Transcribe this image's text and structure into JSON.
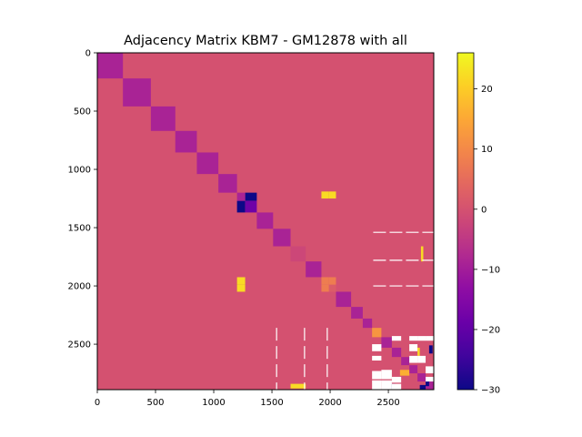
{
  "chart_data": {
    "type": "heatmap",
    "title": "Adjacency Matrix KBM7 - GM12878 with all",
    "matrix_size": 2890,
    "xlim": [
      0,
      2890
    ],
    "ylim": [
      2890,
      0
    ],
    "x_ticks": [
      0,
      500,
      1000,
      1500,
      2000,
      2500
    ],
    "y_ticks": [
      0,
      500,
      1000,
      1500,
      2000,
      2500
    ],
    "background_value": 0,
    "colormap": "plasma",
    "colorbar": {
      "vmin": -30,
      "vmax": 26,
      "ticks": [
        20,
        10,
        0,
        -10,
        -20,
        -30
      ]
    },
    "diagonal_blocks": [
      {
        "start": 0,
        "end": 220,
        "value": -9
      },
      {
        "start": 220,
        "end": 460,
        "value": -9
      },
      {
        "start": 460,
        "end": 670,
        "value": -9
      },
      {
        "start": 670,
        "end": 855,
        "value": -9
      },
      {
        "start": 855,
        "end": 1040,
        "value": -9
      },
      {
        "start": 1040,
        "end": 1200,
        "value": -9
      },
      {
        "start": 1370,
        "end": 1510,
        "value": -9
      },
      {
        "start": 1510,
        "end": 1660,
        "value": -9
      },
      {
        "start": 1660,
        "end": 1790,
        "value": -2
      },
      {
        "start": 1790,
        "end": 1925,
        "value": -9
      },
      {
        "start": 2050,
        "end": 2180,
        "value": -9
      },
      {
        "start": 2180,
        "end": 2280,
        "value": -9
      },
      {
        "start": 2280,
        "end": 2360,
        "value": -9
      },
      {
        "start": 2360,
        "end": 2440,
        "value": 12
      },
      {
        "start": 2440,
        "end": 2530,
        "value": -9
      },
      {
        "start": 2530,
        "end": 2610,
        "value": -9
      },
      {
        "start": 2610,
        "end": 2680,
        "value": -9
      },
      {
        "start": 2680,
        "end": 2750,
        "value": -9
      },
      {
        "start": 2750,
        "end": 2820,
        "value": -9
      },
      {
        "start": 2820,
        "end": 2890,
        "value": -9
      }
    ],
    "cells": [
      {
        "x": [
          1200,
          1270
        ],
        "y": [
          1270,
          1370
        ],
        "value": -30
      },
      {
        "x": [
          1270,
          1370
        ],
        "y": [
          1200,
          1270
        ],
        "value": -30
      },
      {
        "x": [
          1270,
          1370
        ],
        "y": [
          1270,
          1370
        ],
        "value": -18
      },
      {
        "x": [
          1200,
          1270
        ],
        "y": [
          1200,
          1270
        ],
        "value": -9
      },
      {
        "x": [
          1925,
          1990
        ],
        "y": [
          1190,
          1250
        ],
        "value": 22
      },
      {
        "x": [
          1990,
          2050
        ],
        "y": [
          1190,
          1250
        ],
        "value": 22
      },
      {
        "x": [
          1200,
          1270
        ],
        "y": [
          1925,
          1990
        ],
        "value": 22
      },
      {
        "x": [
          1200,
          1270
        ],
        "y": [
          1990,
          2050
        ],
        "value": 22
      },
      {
        "x": [
          1925,
          1990
        ],
        "y": [
          1925,
          1990
        ],
        "value": 8
      },
      {
        "x": [
          1990,
          2050
        ],
        "y": [
          1925,
          1990
        ],
        "value": 8
      },
      {
        "x": [
          1925,
          1990
        ],
        "y": [
          1990,
          2050
        ],
        "value": 8
      },
      {
        "x": [
          1990,
          2050
        ],
        "y": [
          1990,
          2050
        ],
        "value": 2
      },
      {
        "x": [
          1660,
          1790
        ],
        "y": [
          2840,
          2880
        ],
        "value": 22
      },
      {
        "x": [
          2780,
          2800
        ],
        "y": [
          1660,
          1790
        ],
        "value": 22
      },
      {
        "x": [
          2600,
          2680
        ],
        "y": [
          2720,
          2770
        ],
        "value": 16
      },
      {
        "x": [
          2850,
          2880
        ],
        "y": [
          2510,
          2580
        ],
        "value": -30
      },
      {
        "x": [
          2510,
          2560
        ],
        "y": [
          2840,
          2880
        ],
        "value": -30
      },
      {
        "x": [
          2770,
          2820
        ],
        "y": [
          2850,
          2890
        ],
        "value": -30
      },
      {
        "x": [
          2820,
          2850
        ],
        "y": [
          2820,
          2860
        ],
        "value": -30
      },
      {
        "x": [
          2750,
          2770
        ],
        "y": [
          2530,
          2600
        ],
        "value": 22
      }
    ],
    "missing_cells": [
      {
        "x": [
          2360,
          2440
        ],
        "y": [
          2500,
          2560
        ]
      },
      {
        "x": [
          2360,
          2440
        ],
        "y": [
          2600,
          2640
        ]
      },
      {
        "x": [
          2360,
          2440
        ],
        "y": [
          2730,
          2800
        ]
      },
      {
        "x": [
          2360,
          2440
        ],
        "y": [
          2810,
          2890
        ]
      },
      {
        "x": [
          2440,
          2530
        ],
        "y": [
          2720,
          2800
        ]
      },
      {
        "x": [
          2440,
          2530
        ],
        "y": [
          2810,
          2890
        ]
      },
      {
        "x": [
          2530,
          2610
        ],
        "y": [
          2430,
          2470
        ]
      },
      {
        "x": [
          2530,
          2610
        ],
        "y": [
          2780,
          2830
        ]
      },
      {
        "x": [
          2530,
          2610
        ],
        "y": [
          2840,
          2890
        ]
      },
      {
        "x": [
          2680,
          2750
        ],
        "y": [
          2430,
          2470
        ]
      },
      {
        "x": [
          2680,
          2750
        ],
        "y": [
          2500,
          2560
        ]
      },
      {
        "x": [
          2680,
          2750
        ],
        "y": [
          2600,
          2660
        ]
      },
      {
        "x": [
          2750,
          2820
        ],
        "y": [
          2430,
          2470
        ]
      },
      {
        "x": [
          2750,
          2820
        ],
        "y": [
          2600,
          2660
        ]
      },
      {
        "x": [
          2820,
          2890
        ],
        "y": [
          2430,
          2470
        ]
      },
      {
        "x": [
          2820,
          2890
        ],
        "y": [
          2690,
          2750
        ]
      },
      {
        "x": [
          2820,
          2890
        ],
        "y": [
          2780,
          2820
        ]
      }
    ],
    "dashed_lines": {
      "rows": [
        1540,
        1780,
        2000
      ],
      "cols": [
        1540,
        1780,
        1975
      ],
      "row_x_range": [
        2370,
        2890
      ],
      "col_y_range": [
        2360,
        2890
      ]
    }
  }
}
